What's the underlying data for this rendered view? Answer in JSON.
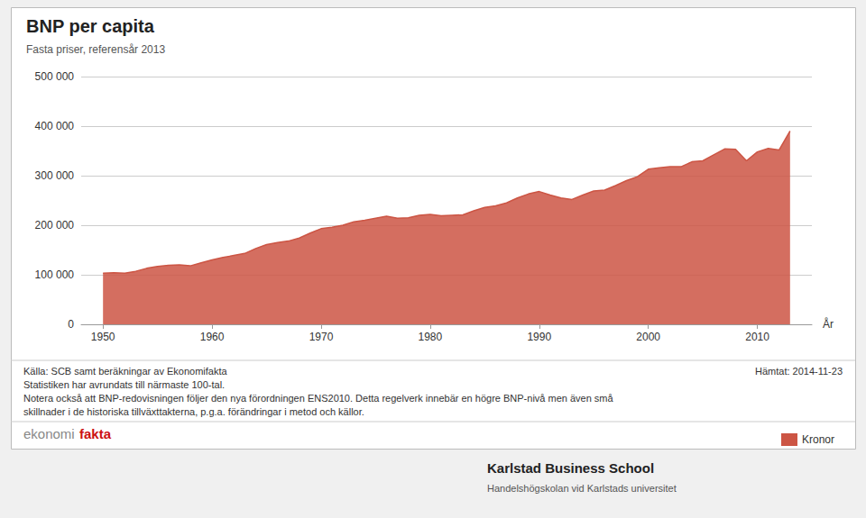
{
  "chart_data": {
    "type": "area",
    "title": "BNP per capita",
    "subtitle": "Fasta priser, referensår 2013",
    "x_label": "År",
    "x": [
      1950,
      1951,
      1952,
      1953,
      1954,
      1955,
      1956,
      1957,
      1958,
      1959,
      1960,
      1961,
      1962,
      1963,
      1964,
      1965,
      1966,
      1967,
      1968,
      1969,
      1970,
      1971,
      1972,
      1973,
      1974,
      1975,
      1976,
      1977,
      1978,
      1979,
      1980,
      1981,
      1982,
      1983,
      1984,
      1985,
      1986,
      1987,
      1988,
      1989,
      1990,
      1991,
      1992,
      1993,
      1994,
      1995,
      1996,
      1997,
      1998,
      1999,
      2000,
      2001,
      2002,
      2003,
      2004,
      2005,
      2006,
      2007,
      2008,
      2009,
      2010,
      2011,
      2012,
      2013
    ],
    "series": [
      {
        "name": "Kronor",
        "color": "#cc5544",
        "values": [
          103000,
          104000,
          103000,
          107000,
          113000,
          117000,
          119000,
          120000,
          118000,
          124000,
          130000,
          135000,
          139000,
          143000,
          153000,
          161000,
          165000,
          168000,
          174000,
          184000,
          193000,
          196000,
          200000,
          207000,
          210000,
          214000,
          218000,
          214000,
          215000,
          220000,
          222000,
          219000,
          220000,
          221000,
          229000,
          236000,
          239000,
          245000,
          255000,
          263000,
          268000,
          261000,
          255000,
          252000,
          261000,
          269000,
          271000,
          280000,
          290000,
          298000,
          313000,
          316000,
          318000,
          318000,
          328000,
          330000,
          342000,
          354000,
          353000,
          330000,
          348000,
          355000,
          352000,
          390000
        ]
      }
    ],
    "xlim": [
      1948,
      2015
    ],
    "xticks": [
      1950,
      1960,
      1970,
      1980,
      1990,
      2000,
      2010
    ],
    "ylim": [
      0,
      500000
    ],
    "yticks": [
      0,
      {
        "value": 100000,
        "label": "100 000"
      },
      {
        "value": 200000,
        "label": "200 000"
      },
      {
        "value": 300000,
        "label": "300 000"
      },
      {
        "value": 400000,
        "label": "400 000"
      },
      {
        "value": 500000,
        "label": "500 000"
      }
    ],
    "grid": true,
    "legend": "lower right",
    "annotations": [
      "Källa: SCB samt beräkningar av Ekonomifakta",
      "Statistiken har avrundats till närmaste 100-tal.",
      "Notera också att BNP-redovisningen följer den nya förordningen ENS2010. Detta regelverk innebär en högre BNP-nivå men även små",
      "skillnader i de historiska tillväxttakterna, p.g.a. förändringar i metod och källor.",
      "Hämtat: 2014-11-23",
      "ekonomi",
      "fakta",
      "Karlstad Business School",
      "Handelshögskolan vid Karlstads universitet"
    ]
  }
}
